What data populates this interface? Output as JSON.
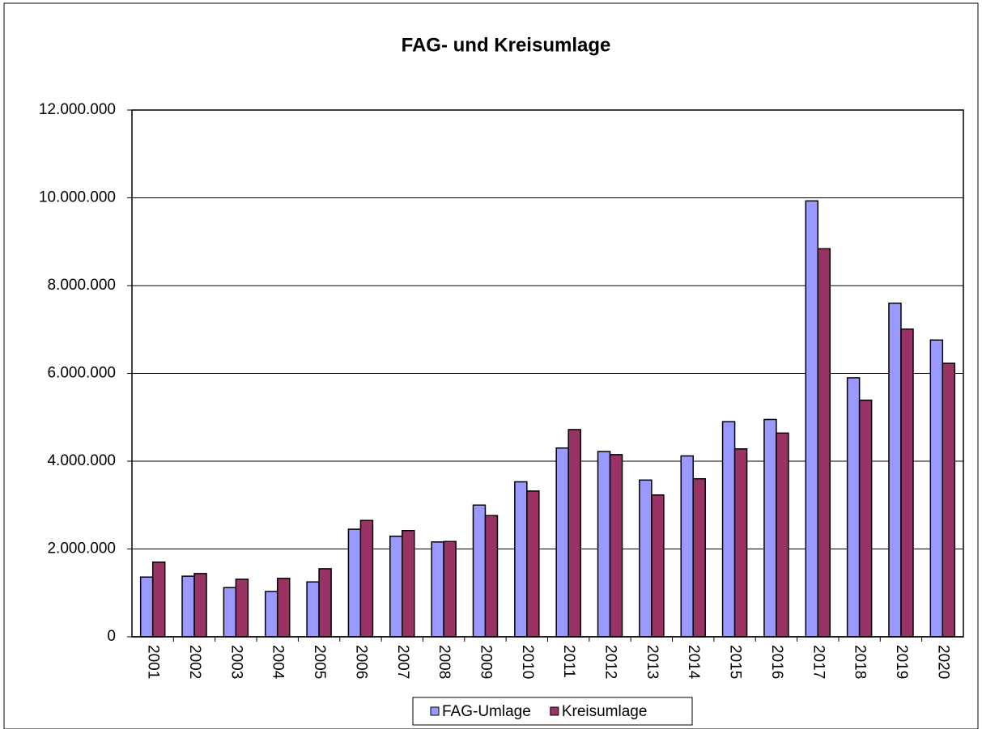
{
  "chart_data": {
    "type": "bar",
    "title": "FAG- und Kreisumlage",
    "categories": [
      "2001",
      "2002",
      "2003",
      "2004",
      "2005",
      "2006",
      "2007",
      "2008",
      "2009",
      "2010",
      "2011",
      "2012",
      "2013",
      "2014",
      "2015",
      "2016",
      "2017",
      "2018",
      "2019",
      "2020"
    ],
    "series": [
      {
        "name": "FAG-Umlage",
        "color": "#9999ff",
        "values": [
          1360000,
          1380000,
          1120000,
          1030000,
          1250000,
          2450000,
          2290000,
          2160000,
          3000000,
          3530000,
          4300000,
          4220000,
          3570000,
          4120000,
          4900000,
          4950000,
          9930000,
          5900000,
          7600000,
          6760000
        ]
      },
      {
        "name": "Kreisumlage",
        "color": "#993366",
        "values": [
          1700000,
          1440000,
          1310000,
          1330000,
          1550000,
          2650000,
          2420000,
          2170000,
          2760000,
          3320000,
          4720000,
          4150000,
          3230000,
          3600000,
          4280000,
          4640000,
          8840000,
          5390000,
          7010000,
          6230000
        ]
      }
    ],
    "ylim": [
      0,
      12000000
    ],
    "yticks": [
      0,
      {
        "value": 2000000,
        "label": "2.000.000"
      },
      {
        "value": 4000000,
        "label": "4.000.000"
      },
      {
        "value": 6000000,
        "label": "6.000.000"
      },
      {
        "value": 8000000,
        "label": "8.000.000"
      },
      {
        "value": 10000000,
        "label": "10.000.000"
      },
      {
        "value": 12000000,
        "label": "12.000.000"
      }
    ],
    "grid": true,
    "legend": "bottom"
  }
}
